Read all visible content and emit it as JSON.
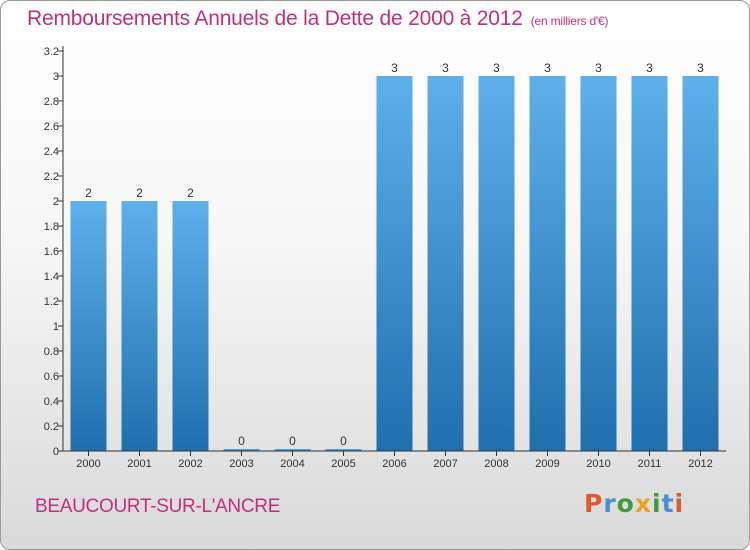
{
  "header": {
    "title": "Remboursements Annuels de la Dette de 2000 à 2012",
    "unit": "(en milliers d'€)"
  },
  "footer": {
    "commune": "BEAUCOURT-SUR-L'ANCRE",
    "brand": "Proxiti"
  },
  "colors": {
    "title": "#c2307a",
    "bar_top": "#5eb0ea",
    "bar_bottom": "#1f6fae"
  },
  "chart_data": {
    "type": "bar",
    "title": "Remboursements Annuels de la Dette de 2000 à 2012",
    "categories": [
      "2000",
      "2001",
      "2002",
      "2003",
      "2004",
      "2005",
      "2006",
      "2007",
      "2008",
      "2009",
      "2010",
      "2011",
      "2012"
    ],
    "values": [
      2,
      2,
      2,
      0,
      0,
      0,
      3,
      3,
      3,
      3,
      3,
      3,
      3
    ],
    "data_labels": [
      "2",
      "2",
      "2",
      "0",
      "0",
      "0",
      "3",
      "3",
      "3",
      "3",
      "3",
      "3",
      "3"
    ],
    "ylim": [
      0,
      3.2
    ],
    "yticks": [
      "0",
      "0.2",
      "0.4",
      "0.6",
      "0.8",
      "1",
      "1.2",
      "1.4",
      "1.6",
      "1.8",
      "2",
      "2.2",
      "2.4",
      "2.6",
      "2.8",
      "3",
      "3.2"
    ],
    "grid": false,
    "xlabel": "",
    "ylabel": ""
  }
}
